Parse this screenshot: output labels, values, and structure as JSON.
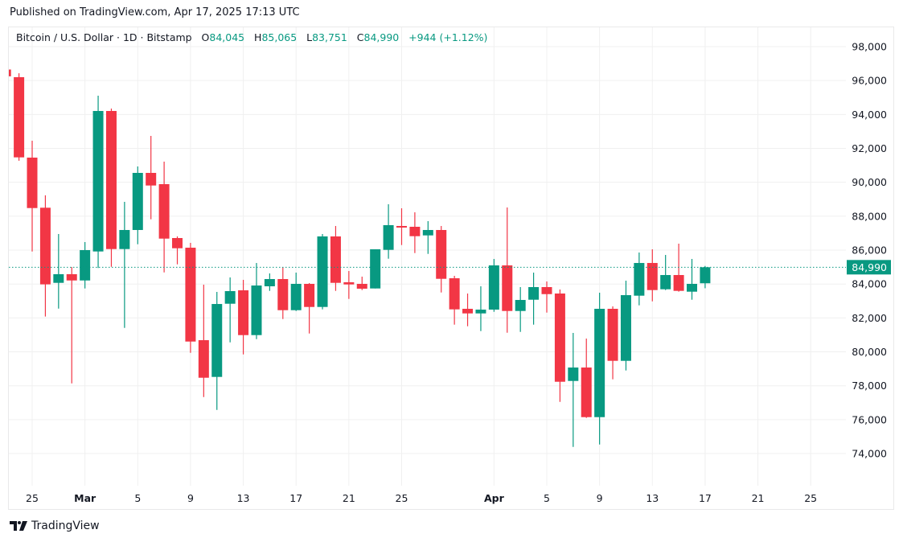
{
  "header": {
    "published": "Published on TradingView.com, Apr 17, 2025 17:13 UTC"
  },
  "legend": {
    "symbol": "Bitcoin / U.S. Dollar · 1D · Bitstamp",
    "o_label": "O",
    "o": "84,045",
    "h_label": "H",
    "h": "85,065",
    "l_label": "L",
    "l": "83,751",
    "c_label": "C",
    "c": "84,990",
    "change": "+944 (+1.12%)"
  },
  "last_price_label": "84,990",
  "brand": {
    "name": "TradingView",
    "icon": "tradingview-logo-icon"
  },
  "colors": {
    "up": "#089981",
    "down": "#F23645",
    "grid": "#f0f0f0"
  },
  "chart_data": {
    "type": "candlestick",
    "symbol": "BTCUSD",
    "interval": "1D",
    "ylim": [
      72000,
      99000
    ],
    "grid": true,
    "y_ticks": [
      "98,000",
      "96,000",
      "94,000",
      "92,000",
      "90,000",
      "88,000",
      "86,000",
      "84,000",
      "82,000",
      "80,000",
      "78,000",
      "76,000",
      "74,000"
    ],
    "y_tick_values": [
      98000,
      96000,
      94000,
      92000,
      90000,
      88000,
      86000,
      84000,
      82000,
      80000,
      78000,
      76000,
      74000
    ],
    "x_ticks": [
      {
        "label": "25",
        "date": "2025-02-25",
        "bold": false
      },
      {
        "label": "Mar",
        "date": "2025-03-01",
        "bold": true
      },
      {
        "label": "5",
        "date": "2025-03-05",
        "bold": false
      },
      {
        "label": "9",
        "date": "2025-03-09",
        "bold": false
      },
      {
        "label": "13",
        "date": "2025-03-13",
        "bold": false
      },
      {
        "label": "17",
        "date": "2025-03-17",
        "bold": false
      },
      {
        "label": "21",
        "date": "2025-03-21",
        "bold": false
      },
      {
        "label": "25",
        "date": "2025-03-25",
        "bold": false
      },
      {
        "label": "Apr",
        "date": "2025-04-01",
        "bold": true
      },
      {
        "label": "5",
        "date": "2025-04-05",
        "bold": false
      },
      {
        "label": "9",
        "date": "2025-04-09",
        "bold": false
      },
      {
        "label": "13",
        "date": "2025-04-13",
        "bold": false
      },
      {
        "label": "17",
        "date": "2025-04-17",
        "bold": false
      },
      {
        "label": "21",
        "date": "2025-04-21",
        "bold": false
      },
      {
        "label": "25",
        "date": "2025-04-25",
        "bold": false
      }
    ],
    "last_price": 84990,
    "columns": [
      "date",
      "open",
      "high",
      "low",
      "close"
    ],
    "candles": [
      [
        "2025-02-23",
        96650,
        96700,
        96100,
        96250
      ],
      [
        "2025-02-24",
        96200,
        96430,
        91270,
        91470
      ],
      [
        "2025-02-25",
        91455,
        92450,
        85920,
        88480
      ],
      [
        "2025-02-26",
        88500,
        89230,
        82080,
        83980
      ],
      [
        "2025-02-27",
        84070,
        86950,
        82550,
        84580
      ],
      [
        "2025-02-28",
        84580,
        85000,
        78140,
        84210
      ],
      [
        "2025-03-01",
        84210,
        86475,
        83740,
        86000
      ],
      [
        "2025-03-02",
        85920,
        95107,
        84943,
        94206
      ],
      [
        "2025-03-03",
        94206,
        94348,
        85018,
        86062
      ],
      [
        "2025-03-04",
        86062,
        88846,
        81414,
        87186
      ],
      [
        "2025-03-05",
        87186,
        90933,
        86347,
        90554
      ],
      [
        "2025-03-06",
        90554,
        92735,
        87817,
        89810
      ],
      [
        "2025-03-07",
        89890,
        91218,
        84686,
        86678
      ],
      [
        "2025-03-08",
        86712,
        86807,
        85161,
        86110
      ],
      [
        "2025-03-09",
        86142,
        86427,
        79944,
        80607
      ],
      [
        "2025-03-10",
        80688,
        83961,
        77335,
        78473
      ],
      [
        "2025-03-11",
        78521,
        83534,
        76576,
        82822
      ],
      [
        "2025-03-12",
        82837,
        84388,
        80560,
        83582
      ],
      [
        "2025-03-13",
        83629,
        84245,
        79849,
        80987
      ],
      [
        "2025-03-14",
        80987,
        85241,
        80750,
        83913
      ],
      [
        "2025-03-15",
        83866,
        84625,
        83596,
        84293
      ],
      [
        "2025-03-16",
        84293,
        85004,
        81935,
        82457
      ],
      [
        "2025-03-17",
        82457,
        84673,
        82410,
        84009
      ],
      [
        "2025-03-18",
        84009,
        84056,
        81082,
        82647
      ],
      [
        "2025-03-19",
        82647,
        86949,
        82505,
        86807
      ],
      [
        "2025-03-20",
        86807,
        87423,
        83596,
        84070
      ],
      [
        "2025-03-21",
        84103,
        84767,
        83121,
        83975
      ],
      [
        "2025-03-22",
        84009,
        84435,
        83643,
        83724
      ],
      [
        "2025-03-23",
        83738,
        86048,
        83738,
        86048
      ],
      [
        "2025-03-24",
        86015,
        88704,
        85493,
        87471
      ],
      [
        "2025-03-25",
        87423,
        88467,
        86299,
        87329
      ],
      [
        "2025-03-26",
        87376,
        88230,
        85825,
        86821
      ],
      [
        "2025-03-27",
        86868,
        87708,
        85777,
        87186
      ],
      [
        "2025-03-28",
        87186,
        87423,
        83501,
        84307
      ],
      [
        "2025-03-29",
        84340,
        84483,
        81604,
        82505
      ],
      [
        "2025-03-30",
        82538,
        83439,
        81509,
        82267
      ],
      [
        "2025-03-31",
        82267,
        83866,
        81224,
        82490
      ],
      [
        "2025-04-01",
        82490,
        85478,
        82362,
        85099
      ],
      [
        "2025-04-02",
        85099,
        88514,
        81129,
        82410
      ],
      [
        "2025-04-03",
        82410,
        83819,
        81176,
        83060
      ],
      [
        "2025-04-04",
        83074,
        84673,
        81604,
        83819
      ],
      [
        "2025-04-05",
        83819,
        84151,
        82315,
        83404
      ],
      [
        "2025-04-06",
        83440,
        83677,
        77051,
        78236
      ],
      [
        "2025-04-07",
        78283,
        81115,
        74395,
        79075
      ],
      [
        "2025-04-08",
        79075,
        80783,
        76102,
        76149
      ],
      [
        "2025-04-09",
        76149,
        83487,
        74537,
        82538
      ],
      [
        "2025-04-10",
        82538,
        82680,
        78380,
        79470
      ],
      [
        "2025-04-11",
        79470,
        84198,
        78901,
        83344
      ],
      [
        "2025-04-12",
        83312,
        85858,
        82743,
        85241
      ],
      [
        "2025-04-13",
        85241,
        86048,
        82979,
        83643
      ],
      [
        "2025-04-14",
        83691,
        85715,
        83643,
        84530
      ],
      [
        "2025-04-15",
        84530,
        86380,
        83549,
        83596
      ],
      [
        "2025-04-16",
        83548,
        85478,
        83074,
        84009
      ],
      [
        "2025-04-17",
        84045,
        85065,
        83751,
        84990
      ]
    ]
  }
}
